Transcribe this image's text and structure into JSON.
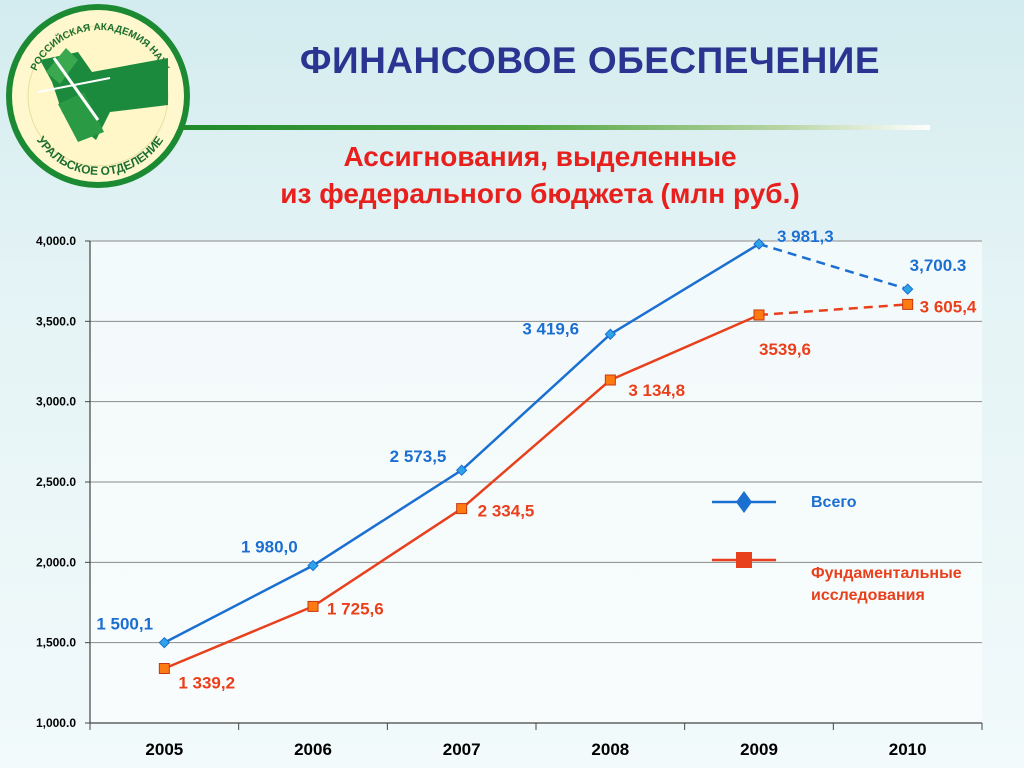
{
  "header": {
    "title": "ФИНАНСОВОЕ ОБЕСПЕЧЕНИЕ"
  },
  "logo": {
    "text_top": "РОССИЙСКАЯ АКАДЕМИЯ НАУК",
    "text_bottom": "УРАЛЬСКОЕ ОТДЕЛЕНИЕ"
  },
  "chart_data": {
    "type": "line",
    "title_lines": [
      "Ассигнования, выделенные",
      "из федерального бюджета (млн руб.)"
    ],
    "categories": [
      "2005",
      "2006",
      "2007",
      "2008",
      "2009",
      "2010"
    ],
    "ylim": [
      1000,
      4000
    ],
    "yticks": [
      1000,
      1500,
      2000,
      2500,
      3000,
      3500,
      4000
    ],
    "ytick_labels": [
      "1,000.0",
      "1,500.0",
      "2,000.0",
      "2,500.0",
      "3,000.0",
      "3,500.0",
      "4,000.0"
    ],
    "grid": "horizontal",
    "legend_position": "right",
    "series": [
      {
        "name": "Всего",
        "color": "#1a6fd1",
        "marker": "diamond",
        "values": [
          1500.1,
          1980.0,
          2573.5,
          3419.6,
          3981.3,
          3700.3
        ],
        "labels": [
          "1 500,1",
          "1 980,0",
          "2 573,5",
          "3 419,6",
          "3 981,3",
          "3,700.3"
        ],
        "dashed_last_segment": true
      },
      {
        "name": "Фундаментальные исследования",
        "legend_lines": [
          "Фундаментальные",
          "исследования"
        ],
        "color": "#e8401c",
        "marker": "square",
        "values": [
          1339.2,
          1725.6,
          2334.5,
          3134.8,
          3539.6,
          3605.4
        ],
        "labels": [
          "1 339,2",
          "1 725,6",
          "2 334,5",
          "3 134,8",
          "3539,6",
          "3 605,4"
        ],
        "dashed_last_segment": true
      }
    ]
  }
}
